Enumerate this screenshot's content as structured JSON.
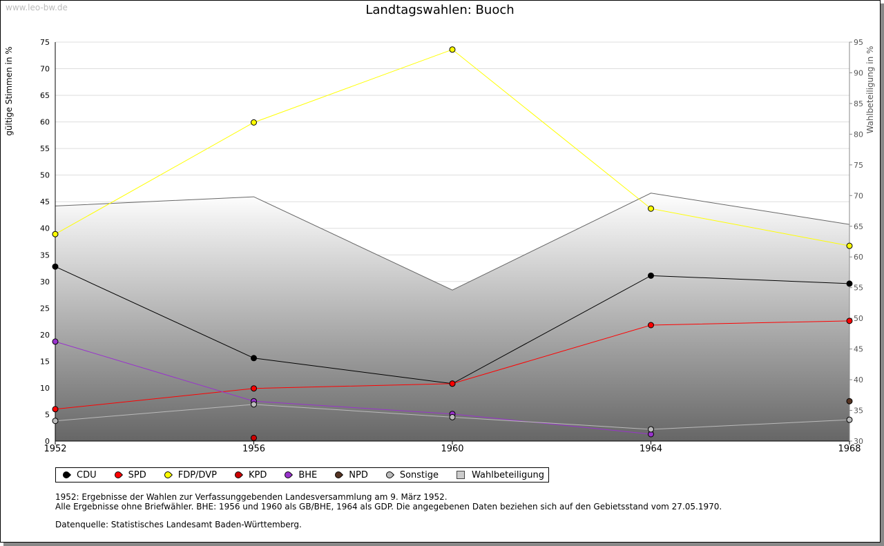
{
  "watermark": "www.leo-bw.de",
  "notes": [
    "1952: Ergebnisse der Wahlen zur Verfassunggebenden Landesversammlung am 9. März 1952.",
    "Alle Ergebnisse ohne Briefwähler. BHE: 1956 und 1960 als GB/BHE, 1964 als GDP. Die angegebenen Daten beziehen sich auf den Gebietsstand vom 27.05.1970.",
    "Datenquelle: Statistisches Landesamt Baden-Württemberg."
  ],
  "chart_data": {
    "type": "line",
    "title": "Landtagswahlen: Buoch",
    "ylabel": "gültige Stimmen in %",
    "y2label": "Wahlbeteiligung in %",
    "x": [
      1952,
      1956,
      1960,
      1964,
      1968
    ],
    "ylim": [
      0,
      75
    ],
    "yticks": [
      0,
      5,
      10,
      15,
      20,
      25,
      30,
      35,
      40,
      45,
      50,
      55,
      60,
      65,
      70,
      75
    ],
    "y2lim": [
      30,
      95
    ],
    "y2ticks": [
      30,
      35,
      40,
      45,
      50,
      55,
      60,
      65,
      70,
      75,
      80,
      85,
      90,
      95
    ],
    "grid": true,
    "legend_position": "bottom",
    "turnout": {
      "name": "Wahlbeteiligung",
      "color": "#cccccc",
      "values": [
        68.3,
        69.8,
        54.6,
        70.4,
        65.3
      ]
    },
    "series": [
      {
        "name": "CDU",
        "color": "#000000",
        "values": [
          32.8,
          15.6,
          10.8,
          31.1,
          29.6
        ]
      },
      {
        "name": "SPD",
        "color": "#ff0000",
        "values": [
          6.0,
          9.9,
          10.8,
          21.8,
          22.6
        ]
      },
      {
        "name": "FDP/DVP",
        "color": "#ffff00",
        "values": [
          38.9,
          59.9,
          73.6,
          43.7,
          36.7
        ]
      },
      {
        "name": "KPD",
        "color": "#cc0000",
        "values": [
          null,
          0.6,
          null,
          null,
          null
        ]
      },
      {
        "name": "BHE",
        "color": "#9933cc",
        "values": [
          18.7,
          7.5,
          5.1,
          1.3,
          null
        ]
      },
      {
        "name": "NPD",
        "color": "#553322",
        "values": [
          null,
          null,
          null,
          null,
          7.5
        ]
      },
      {
        "name": "Sonstige",
        "color": "#bbbbbb",
        "values": [
          3.8,
          6.9,
          4.5,
          2.2,
          4.0
        ]
      }
    ]
  }
}
